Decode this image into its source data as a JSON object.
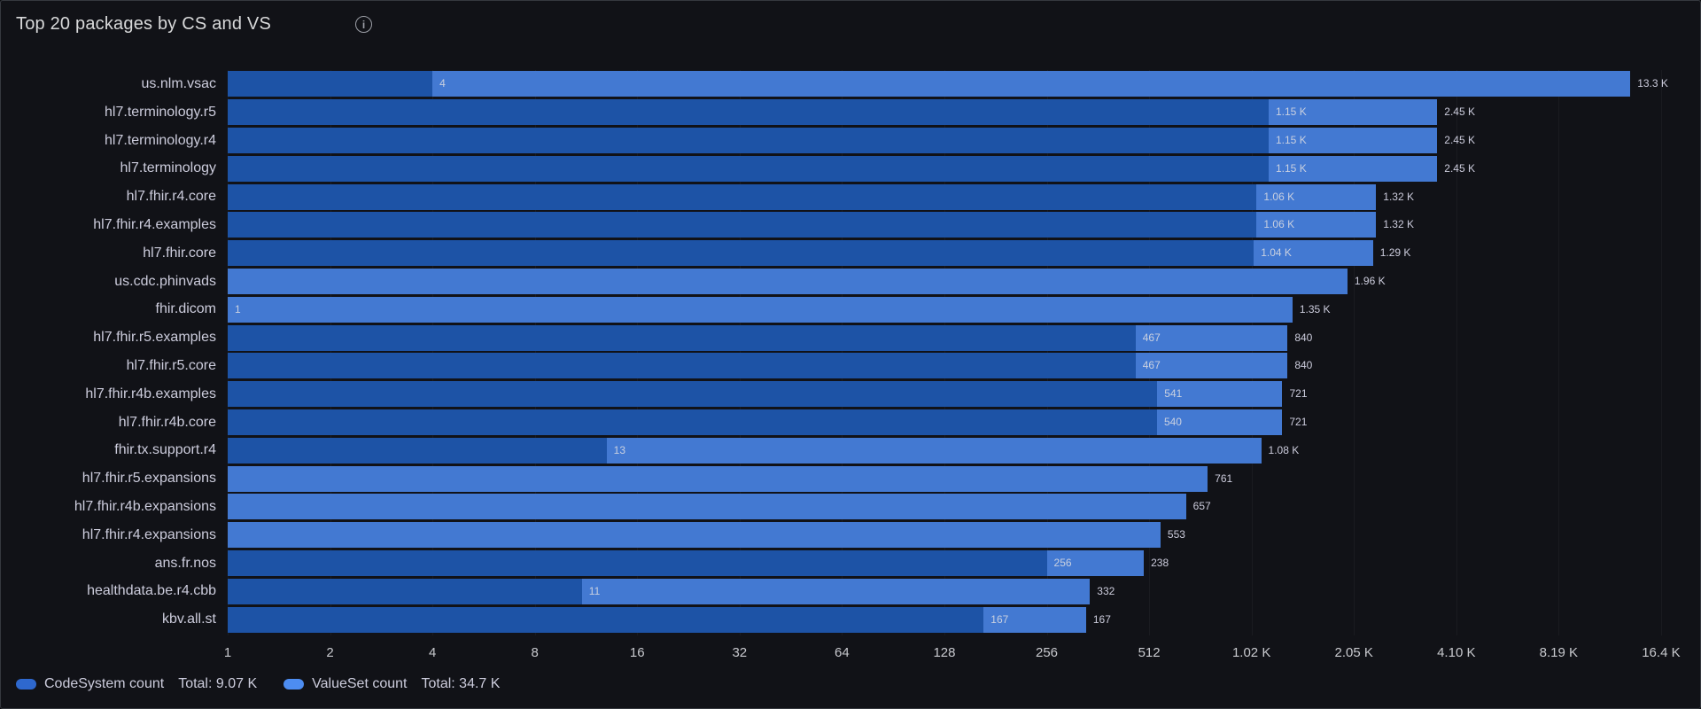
{
  "panel": {
    "title": "Top 20 packages by CS and VS",
    "info_icon": "info-circle",
    "background": "#111217",
    "border_color": "#35383f"
  },
  "chart_data": {
    "type": "bar",
    "orientation": "horizontal",
    "stacking": true,
    "x_scale": "log2",
    "x_range": [
      1,
      16400
    ],
    "grid": "faint-vertical-lines",
    "legend_position": "bottom",
    "title": "Top 20 packages by CS and VS",
    "x_ticks": [
      "1",
      "2",
      "4",
      "8",
      "16",
      "32",
      "64",
      "128",
      "256",
      "512",
      "1.02 K",
      "2.05 K",
      "4.10 K",
      "8.19 K",
      "16.4 K"
    ],
    "x_tick_values": [
      1,
      2,
      4,
      8,
      16,
      32,
      64,
      128,
      256,
      512,
      1024,
      2048,
      4096,
      8192,
      16384
    ],
    "categories": [
      "us.nlm.vsac",
      "hl7.terminology.r5",
      "hl7.terminology.r4",
      "hl7.terminology",
      "hl7.fhir.r4.core",
      "hl7.fhir.r4.examples",
      "hl7.fhir.core",
      "us.cdc.phinvads",
      "fhir.dicom",
      "hl7.fhir.r5.examples",
      "hl7.fhir.r5.core",
      "hl7.fhir.r4b.examples",
      "hl7.fhir.r4b.core",
      "fhir.tx.support.r4",
      "hl7.fhir.r5.expansions",
      "hl7.fhir.r4b.expansions",
      "hl7.fhir.r4.expansions",
      "ans.fr.nos",
      "healthdata.be.r4.cbb",
      "kbv.all.st"
    ],
    "series": [
      {
        "name": "CodeSystem count",
        "total_label": "Total: 9.07 K",
        "bar_color": "#1d53a6",
        "legend_color": "#2e68ce",
        "values": [
          4,
          1150,
          1150,
          1150,
          1060,
          1060,
          1040,
          0,
          1,
          467,
          467,
          541,
          540,
          13,
          0,
          0,
          0,
          256,
          11,
          167
        ],
        "labels": [
          "4",
          "1.15 K",
          "1.15 K",
          "1.15 K",
          "1.06 K",
          "1.06 K",
          "1.04 K",
          "",
          "1",
          "467",
          "467",
          "541",
          "540",
          "13",
          "",
          "",
          "",
          "256",
          "11",
          "167"
        ]
      },
      {
        "name": "ValueSet count",
        "total_label": "Total: 34.7 K",
        "bar_color": "#4379d2",
        "legend_color": "#4d8df2",
        "values": [
          13300,
          2450,
          2450,
          2450,
          1320,
          1320,
          1290,
          1960,
          1350,
          840,
          840,
          721,
          721,
          1080,
          761,
          657,
          553,
          238,
          332,
          167
        ],
        "labels": [
          "13.3 K",
          "2.45 K",
          "2.45 K",
          "2.45 K",
          "1.32 K",
          "1.32 K",
          "1.29 K",
          "1.96 K",
          "1.35 K",
          "840",
          "840",
          "721",
          "721",
          "1.08 K",
          "761",
          "657",
          "553",
          "238",
          "332",
          "167"
        ]
      }
    ]
  },
  "colors": {
    "text": "#ccccdc",
    "axis_text": "#c8c9ce",
    "title_text": "#d8d9da",
    "grid_line": "rgba(204,204,220,0.05)"
  }
}
